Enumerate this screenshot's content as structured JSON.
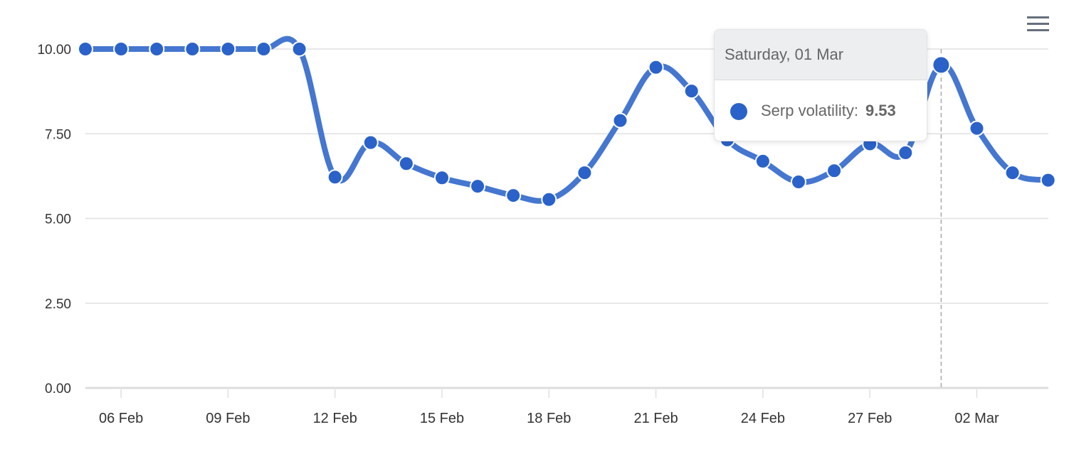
{
  "chart_data": {
    "type": "line",
    "title": "",
    "xlabel": "",
    "ylabel": "",
    "ylim": [
      0,
      10
    ],
    "yticks": [
      "0.00",
      "2.50",
      "5.00",
      "7.50",
      "10.00"
    ],
    "xticks": [
      "06 Feb",
      "09 Feb",
      "12 Feb",
      "15 Feb",
      "18 Feb",
      "21 Feb",
      "24 Feb",
      "27 Feb",
      "02 Mar"
    ],
    "grid": true,
    "legend": false,
    "x": [
      "05 Feb",
      "06 Feb",
      "07 Feb",
      "08 Feb",
      "09 Feb",
      "10 Feb",
      "11 Feb",
      "12 Feb",
      "13 Feb",
      "14 Feb",
      "15 Feb",
      "16 Feb",
      "17 Feb",
      "18 Feb",
      "19 Feb",
      "20 Feb",
      "21 Feb",
      "22 Feb",
      "23 Feb",
      "24 Feb",
      "25 Feb",
      "26 Feb",
      "27 Feb",
      "28 Feb",
      "01 Mar",
      "02 Mar",
      "03 Mar",
      "04 Mar"
    ],
    "series": [
      {
        "name": "Serp volatility",
        "color": "#2a62c9",
        "values": [
          10.0,
          10.0,
          10.0,
          10.0,
          10.0,
          10.0,
          10.0,
          6.22,
          7.24,
          6.62,
          6.2,
          5.95,
          5.68,
          5.56,
          6.35,
          7.89,
          9.46,
          8.76,
          7.32,
          6.69,
          6.08,
          6.41,
          7.2,
          6.94,
          9.53,
          7.66,
          6.35,
          6.13
        ]
      }
    ],
    "highlighted_index": 24
  },
  "tooltip": {
    "header": "Saturday, 01 Mar",
    "series_label": "Serp volatility:",
    "value": "9.53"
  },
  "menu": {
    "icon": "hamburger-menu-icon"
  }
}
